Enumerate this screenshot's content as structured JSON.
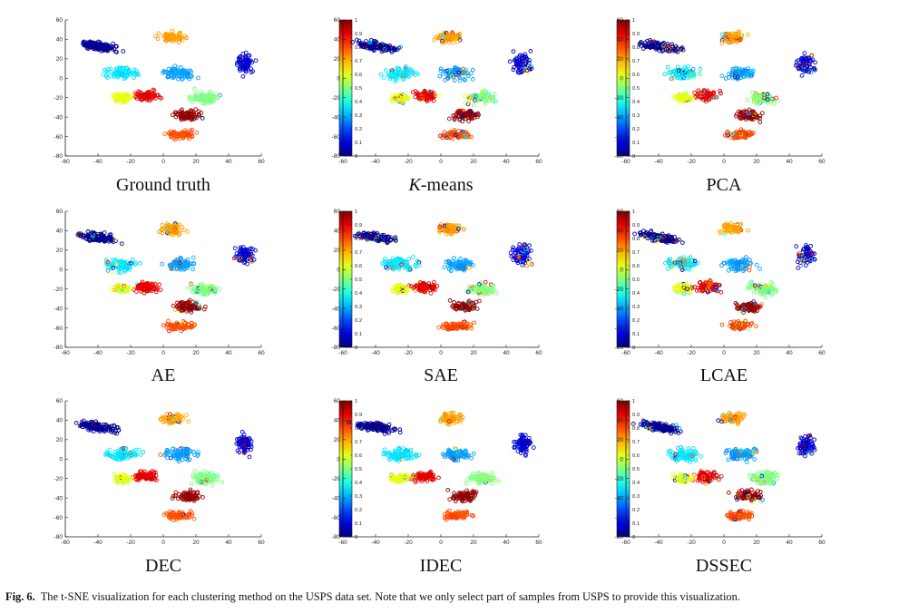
{
  "figure": {
    "panels": [
      {
        "id": "ground-truth",
        "label_prefix": "",
        "label_italic": "",
        "label_rest": "Ground truth",
        "mix": 0.02
      },
      {
        "id": "kmeans",
        "label_prefix": "",
        "label_italic": "K",
        "label_rest": "-means",
        "mix": 0.18
      },
      {
        "id": "pca",
        "label_prefix": "",
        "label_italic": "",
        "label_rest": "PCA",
        "mix": 0.2
      },
      {
        "id": "ae",
        "label_prefix": "",
        "label_italic": "",
        "label_rest": "AE",
        "mix": 0.12
      },
      {
        "id": "sae",
        "label_prefix": "",
        "label_italic": "",
        "label_rest": "SAE",
        "mix": 0.14
      },
      {
        "id": "lcae",
        "label_prefix": "",
        "label_italic": "",
        "label_rest": "LCAE",
        "mix": 0.2
      },
      {
        "id": "dec",
        "label_prefix": "",
        "label_italic": "",
        "label_rest": "DEC",
        "mix": 0.06
      },
      {
        "id": "idec",
        "label_prefix": "",
        "label_italic": "",
        "label_rest": "IDEC",
        "mix": 0.05
      },
      {
        "id": "dssec",
        "label_prefix": "",
        "label_italic": "",
        "label_rest": "DSSEC",
        "mix": 0.15
      }
    ],
    "caption_label": "Fig. 6.",
    "caption_text": "The t-SNE visualization for each clustering method on the USPS data set. Note that we only select part of samples from USPS to provide this visualization."
  },
  "chart_data": {
    "type": "scatter",
    "x_ticks": [
      "-60",
      "-40",
      "-20",
      "0",
      "20",
      "40",
      "60"
    ],
    "y_ticks": [
      "60",
      "40",
      "20",
      "0",
      "-20",
      "-40",
      "-60",
      "-80"
    ],
    "xlim": [
      -60,
      60
    ],
    "ylim": [
      -80,
      60
    ],
    "colorbar_ticks": [
      "1",
      "0.9",
      "0.8",
      "0.7",
      "0.6",
      "0.5",
      "0.4",
      "0.3",
      "0.2",
      "0.1",
      "0"
    ],
    "colorbar_range": [
      0,
      1
    ],
    "colormap": "jet",
    "marker": "open-circle",
    "clusters": [
      {
        "center": [
          -40,
          33
        ],
        "spread": [
          11,
          4
        ],
        "elongate": true,
        "value": 0.02
      },
      {
        "center": [
          50,
          15
        ],
        "spread": [
          5,
          10
        ],
        "elongate": false,
        "value": 0.08
      },
      {
        "center": [
          5,
          42
        ],
        "spread": [
          7,
          5
        ],
        "elongate": false,
        "value": 0.72
      },
      {
        "center": [
          -25,
          5
        ],
        "spread": [
          10,
          6
        ],
        "elongate": false,
        "value": 0.35
      },
      {
        "center": [
          10,
          5
        ],
        "spread": [
          9,
          6
        ],
        "elongate": false,
        "value": 0.28
      },
      {
        "center": [
          -10,
          -18
        ],
        "spread": [
          7,
          5
        ],
        "elongate": false,
        "value": 0.9
      },
      {
        "center": [
          25,
          -20
        ],
        "spread": [
          8,
          6
        ],
        "elongate": false,
        "value": 0.5
      },
      {
        "center": [
          15,
          -38
        ],
        "spread": [
          8,
          5
        ],
        "elongate": false,
        "value": 0.98
      },
      {
        "center": [
          10,
          -58
        ],
        "spread": [
          8,
          4
        ],
        "elongate": false,
        "value": 0.8
      },
      {
        "center": [
          -25,
          -20
        ],
        "spread": [
          5,
          4
        ],
        "elongate": false,
        "value": 0.6
      }
    ],
    "accent_color": "#1a1a1a"
  }
}
